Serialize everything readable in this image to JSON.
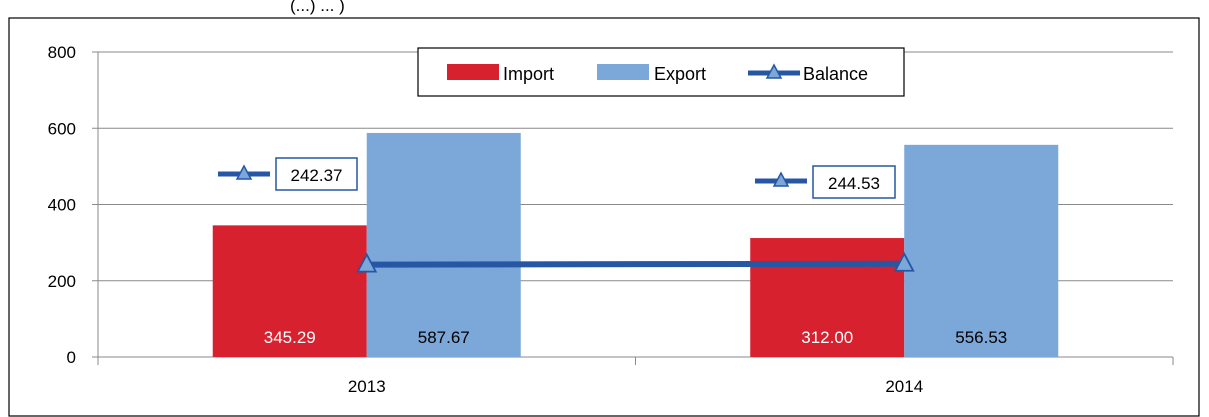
{
  "header_fragment": "(...) ... )",
  "chart_data": {
    "type": "bar",
    "categories": [
      "2013",
      "2014"
    ],
    "series": [
      {
        "name": "Import",
        "kind": "bar",
        "color": "#d7212e",
        "values": [
          345.29,
          312.0
        ],
        "labels": [
          "345.29",
          "312.00"
        ],
        "label_color": "#ffffff"
      },
      {
        "name": "Export",
        "kind": "bar",
        "color": "#7ba7d9",
        "values": [
          587.67,
          556.53
        ],
        "labels": [
          "587.67",
          "556.53"
        ],
        "label_color": "#000000"
      },
      {
        "name": "Balance",
        "kind": "line",
        "color": "#2557a4",
        "values": [
          242.37,
          244.53
        ],
        "labels": [
          "242.37",
          "244.53"
        ]
      }
    ],
    "ylim": [
      0,
      800
    ],
    "yticks": [
      "0",
      "200",
      "400",
      "600",
      "800"
    ],
    "grid": true,
    "legend": "top-center"
  }
}
